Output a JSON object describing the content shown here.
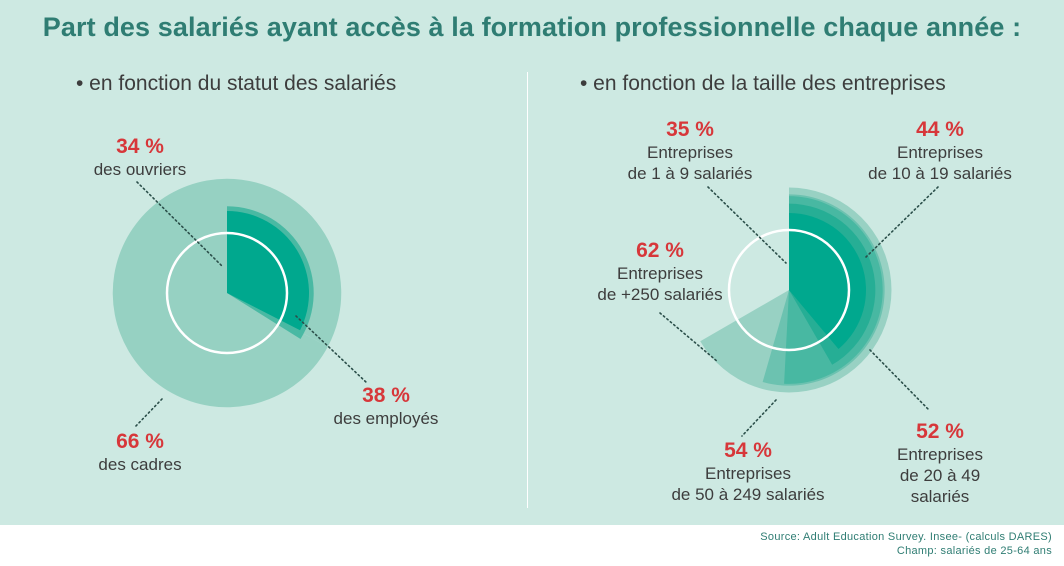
{
  "title": "Part des salariés ayant accès à la formation professionnelle chaque année :",
  "colors": {
    "ring": "#ffffff",
    "leader": "#2b4f4a",
    "text": "#3d3d3d",
    "value": "#d7373a"
  },
  "chart_data": [
    {
      "type": "polar-area",
      "title": "• en fonction du statut des salariés",
      "series": [
        {
          "label": "des ouvriers",
          "value": 34,
          "value_label": "34 %",
          "color": "#00a88e"
        },
        {
          "label": "des employés",
          "value": 38,
          "value_label": "38 %",
          "color": "#49b9a3"
        },
        {
          "label": "des cadres",
          "value": 66,
          "value_label": "66 %",
          "color": "#96d1c2"
        }
      ]
    },
    {
      "type": "polar-area",
      "title": "• en fonction de la taille des entreprises",
      "series": [
        {
          "label": "Entreprises de 1 à 9 salariés",
          "value": 35,
          "value_label": "35 %",
          "color": "#00a88e"
        },
        {
          "label": "Entreprises de 10 à 19 salariés",
          "value": 44,
          "value_label": "44 %",
          "color": "#26ae95"
        },
        {
          "label": "Entreprises de 20 à 49 salariés",
          "value": 52,
          "value_label": "52 %",
          "color": "#48b8a2"
        },
        {
          "label": "Entreprises de 50 à 249 salariés",
          "value": 54,
          "value_label": "54 %",
          "color": "#6cc2b0"
        },
        {
          "label": "Entreprises de +250 salariés",
          "value": 62,
          "value_label": "62 %",
          "color": "#98d1c3"
        }
      ]
    }
  ],
  "labels": {
    "left": {
      "ouvriers": {
        "pct": "34 %",
        "text": "des ouvriers"
      },
      "employes": {
        "pct": "38 %",
        "text": "des employés"
      },
      "cadres": {
        "pct": "66 %",
        "text": "des cadres"
      }
    },
    "right": {
      "s1": {
        "pct": "35 %",
        "line1": "Entreprises",
        "line2": "de 1 à 9 salariés"
      },
      "s10": {
        "pct": "44 %",
        "line1": "Entreprises",
        "line2": "de 10 à 19 salariés"
      },
      "s20": {
        "pct": "52 %",
        "line1": "Entreprises",
        "line2": "de 20 à 49",
        "line3": "salariés"
      },
      "s50": {
        "pct": "54 %",
        "line1": "Entreprises",
        "line2": "de 50 à 249 salariés"
      },
      "s250": {
        "pct": "62 %",
        "line1": "Entreprises",
        "line2": "de +250 salariés"
      }
    }
  },
  "source": {
    "line1": "Source: Adult Education Survey. Insee- (calculs DARES)",
    "line2": "Champ: salariés de 25-64 ans"
  }
}
